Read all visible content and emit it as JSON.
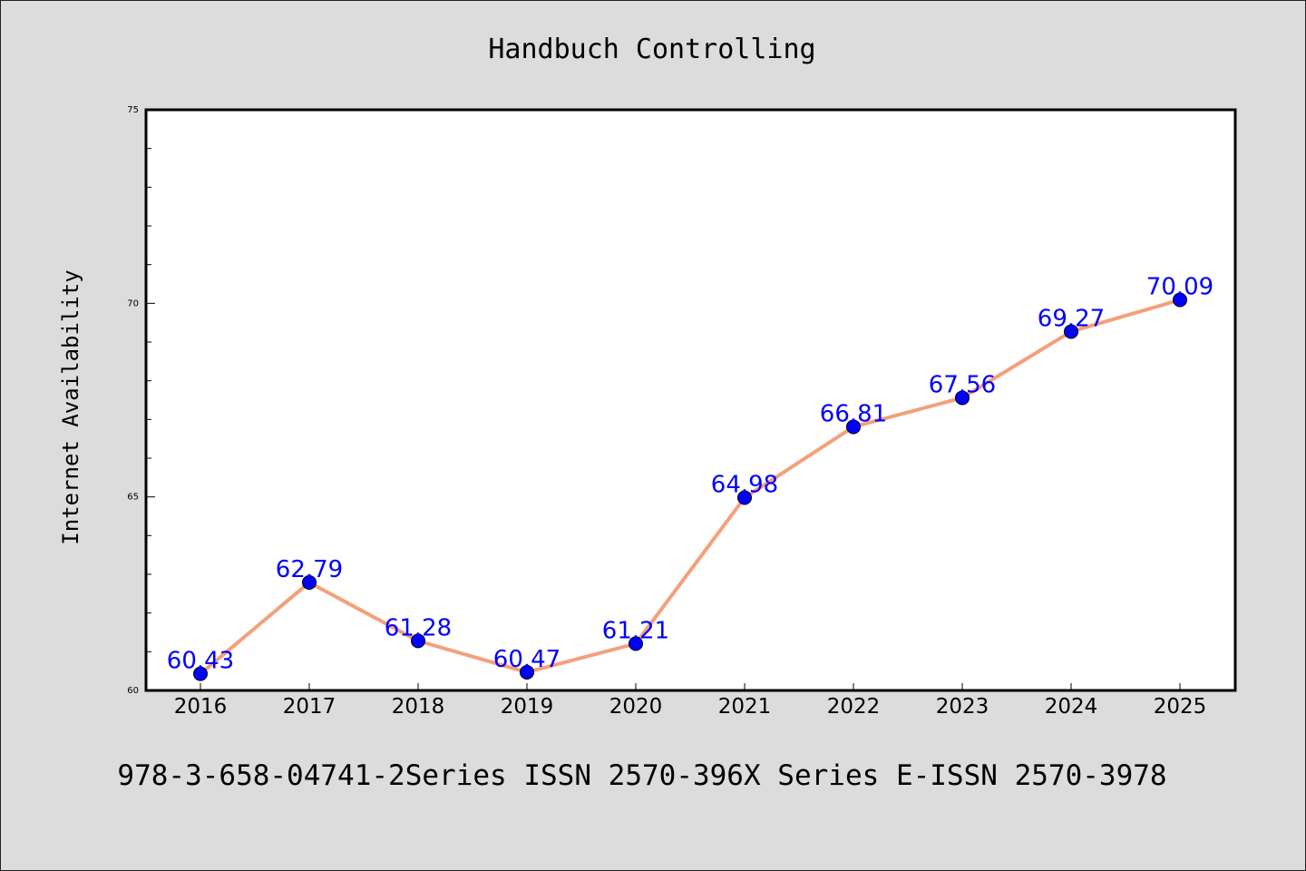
{
  "chart_data": {
    "type": "line",
    "title": "Handbuch Controlling",
    "xlabel": "",
    "ylabel": "Internet Availability",
    "footer": "978-3-658-04741-2Series ISSN 2570-396X Series E-ISSN 2570-3978",
    "categories": [
      "2016",
      "2017",
      "2018",
      "2019",
      "2020",
      "2021",
      "2022",
      "2023",
      "2024",
      "2025"
    ],
    "values": [
      60.43,
      62.79,
      61.28,
      60.47,
      61.21,
      64.98,
      66.81,
      67.56,
      69.27,
      70.09
    ],
    "data_labels": [
      "60.43",
      "62.79",
      "61.28",
      "60.47",
      "61.21",
      "64.98",
      "66.81",
      "67.56",
      "69.27",
      "70.09"
    ],
    "ylim": [
      60,
      75
    ],
    "yticks": [
      "60",
      "65",
      "70",
      "75"
    ],
    "y_minor_step": 1,
    "grid": false,
    "legend": "none",
    "line_color": "#f4a07a",
    "marker_color": "#0000ff",
    "label_color": "#0000ff",
    "background_color": "#dcdcdc",
    "plot_background_color": "#ffffff"
  }
}
